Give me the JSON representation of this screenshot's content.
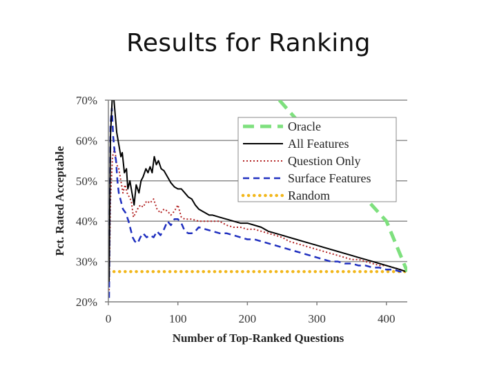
{
  "slide": {
    "title": "Results for Ranking"
  },
  "chart_data": {
    "type": "line",
    "xlabel": "Number of Top-Ranked Questions",
    "ylabel": "Pct. Rated Acceptable",
    "xlim": [
      0,
      430
    ],
    "ylim": [
      20,
      70
    ],
    "x_ticks": [
      {
        "value": 0,
        "label": "0"
      },
      {
        "value": 100,
        "label": "100"
      },
      {
        "value": 200,
        "label": "200"
      },
      {
        "value": 300,
        "label": "300"
      },
      {
        "value": 400,
        "label": "400"
      }
    ],
    "y_ticks": [
      {
        "value": 20,
        "label": "20%"
      },
      {
        "value": 30,
        "label": "30%"
      },
      {
        "value": 40,
        "label": "40%"
      },
      {
        "value": 50,
        "label": "50%"
      },
      {
        "value": 60,
        "label": "60%"
      },
      {
        "value": 70,
        "label": "70%"
      }
    ],
    "grid": true,
    "legend_position": "top-right",
    "series": [
      {
        "name": "Oracle",
        "color": "#7ee07e",
        "style": "dashed-thick",
        "points": [
          [
            246,
            70
          ],
          [
            300,
            59.5
          ],
          [
            350,
            49.5
          ],
          [
            400,
            40
          ],
          [
            430,
            27.5
          ]
        ]
      },
      {
        "name": "All Features",
        "color": "#000000",
        "style": "solid",
        "points": [
          [
            1,
            25
          ],
          [
            3,
            61
          ],
          [
            6,
            72
          ],
          [
            8,
            70
          ],
          [
            10,
            66
          ],
          [
            12,
            62
          ],
          [
            15,
            59
          ],
          [
            18,
            56
          ],
          [
            20,
            57
          ],
          [
            23,
            52
          ],
          [
            26,
            53
          ],
          [
            28,
            48
          ],
          [
            31,
            50
          ],
          [
            34,
            47
          ],
          [
            37,
            44
          ],
          [
            40,
            49
          ],
          [
            44,
            47
          ],
          [
            47,
            50
          ],
          [
            50,
            51
          ],
          [
            54,
            53
          ],
          [
            57,
            52
          ],
          [
            60,
            53.5
          ],
          [
            63,
            52
          ],
          [
            66,
            56
          ],
          [
            69,
            54
          ],
          [
            72,
            55
          ],
          [
            76,
            53
          ],
          [
            80,
            52.5
          ],
          [
            85,
            51
          ],
          [
            90,
            49.5
          ],
          [
            95,
            48.5
          ],
          [
            100,
            48
          ],
          [
            105,
            48
          ],
          [
            110,
            47
          ],
          [
            115,
            46
          ],
          [
            120,
            45.5
          ],
          [
            125,
            44
          ],
          [
            130,
            43
          ],
          [
            135,
            42.5
          ],
          [
            140,
            42
          ],
          [
            145,
            41.5
          ],
          [
            150,
            41.5
          ],
          [
            160,
            41
          ],
          [
            170,
            40.5
          ],
          [
            180,
            40
          ],
          [
            190,
            39.5
          ],
          [
            200,
            39.5
          ],
          [
            210,
            39
          ],
          [
            220,
            38.5
          ],
          [
            230,
            37.5
          ],
          [
            240,
            37
          ],
          [
            250,
            36.5
          ],
          [
            260,
            36
          ],
          [
            270,
            35.5
          ],
          [
            280,
            35
          ],
          [
            290,
            34.5
          ],
          [
            300,
            34
          ],
          [
            310,
            33.5
          ],
          [
            320,
            33
          ],
          [
            330,
            32.5
          ],
          [
            340,
            32
          ],
          [
            350,
            31.5
          ],
          [
            360,
            31
          ],
          [
            370,
            30.5
          ],
          [
            380,
            30
          ],
          [
            390,
            29.5
          ],
          [
            400,
            29
          ],
          [
            410,
            28.5
          ],
          [
            420,
            28
          ],
          [
            428,
            27.5
          ]
        ]
      },
      {
        "name": "Question Only",
        "color": "#b22222",
        "style": "dotted",
        "points": [
          [
            1,
            22
          ],
          [
            3,
            45
          ],
          [
            6,
            56
          ],
          [
            9,
            58
          ],
          [
            12,
            54
          ],
          [
            15,
            53
          ],
          [
            18,
            50
          ],
          [
            21,
            47
          ],
          [
            24,
            49
          ],
          [
            27,
            47
          ],
          [
            30,
            46
          ],
          [
            33,
            45
          ],
          [
            36,
            41
          ],
          [
            39,
            42
          ],
          [
            42,
            43
          ],
          [
            46,
            44
          ],
          [
            50,
            43.5
          ],
          [
            55,
            45
          ],
          [
            60,
            44.5
          ],
          [
            65,
            45.5
          ],
          [
            70,
            43
          ],
          [
            75,
            42
          ],
          [
            80,
            43
          ],
          [
            85,
            42.5
          ],
          [
            90,
            41.5
          ],
          [
            95,
            42.5
          ],
          [
            100,
            44
          ],
          [
            105,
            41
          ],
          [
            110,
            40.5
          ],
          [
            120,
            40.5
          ],
          [
            130,
            40
          ],
          [
            140,
            40
          ],
          [
            150,
            40
          ],
          [
            160,
            40
          ],
          [
            170,
            39
          ],
          [
            180,
            38.5
          ],
          [
            190,
            38.5
          ],
          [
            200,
            38
          ],
          [
            210,
            38
          ],
          [
            220,
            37.5
          ],
          [
            230,
            37
          ],
          [
            240,
            36.5
          ],
          [
            250,
            36
          ],
          [
            260,
            35
          ],
          [
            270,
            34.5
          ],
          [
            280,
            34
          ],
          [
            290,
            33.5
          ],
          [
            300,
            33
          ],
          [
            310,
            32.5
          ],
          [
            320,
            32
          ],
          [
            330,
            31.5
          ],
          [
            340,
            31
          ],
          [
            350,
            30.5
          ],
          [
            360,
            30.5
          ],
          [
            370,
            30
          ],
          [
            380,
            29.5
          ],
          [
            390,
            29
          ],
          [
            400,
            29
          ],
          [
            410,
            28.5
          ],
          [
            420,
            28
          ],
          [
            428,
            27.5
          ]
        ]
      },
      {
        "name": "Surface Features",
        "color": "#1f2fbf",
        "style": "dashed",
        "points": [
          [
            1,
            21
          ],
          [
            3,
            64
          ],
          [
            5,
            68
          ],
          [
            7,
            61
          ],
          [
            9,
            57
          ],
          [
            11,
            55
          ],
          [
            13,
            50
          ],
          [
            15,
            47
          ],
          [
            18,
            45
          ],
          [
            21,
            43
          ],
          [
            25,
            42
          ],
          [
            29,
            40
          ],
          [
            32,
            38
          ],
          [
            35,
            36
          ],
          [
            38,
            35
          ],
          [
            42,
            34.5
          ],
          [
            46,
            36
          ],
          [
            50,
            37
          ],
          [
            55,
            36
          ],
          [
            60,
            36.5
          ],
          [
            65,
            36
          ],
          [
            70,
            37.5
          ],
          [
            75,
            36.5
          ],
          [
            80,
            38
          ],
          [
            85,
            40
          ],
          [
            90,
            39
          ],
          [
            95,
            40.5
          ],
          [
            100,
            40.5
          ],
          [
            105,
            39.5
          ],
          [
            110,
            37.5
          ],
          [
            115,
            37
          ],
          [
            120,
            37
          ],
          [
            125,
            37.5
          ],
          [
            130,
            38.5
          ],
          [
            140,
            38
          ],
          [
            150,
            37.5
          ],
          [
            160,
            37
          ],
          [
            170,
            37
          ],
          [
            180,
            36.5
          ],
          [
            190,
            36
          ],
          [
            200,
            35.5
          ],
          [
            210,
            35.5
          ],
          [
            220,
            35
          ],
          [
            230,
            34.5
          ],
          [
            240,
            34
          ],
          [
            250,
            33.5
          ],
          [
            260,
            33
          ],
          [
            270,
            32.5
          ],
          [
            280,
            32
          ],
          [
            290,
            31.5
          ],
          [
            300,
            31
          ],
          [
            310,
            30.5
          ],
          [
            320,
            30
          ],
          [
            330,
            30
          ],
          [
            340,
            29.5
          ],
          [
            350,
            29.5
          ],
          [
            360,
            29
          ],
          [
            370,
            29
          ],
          [
            380,
            28.5
          ],
          [
            390,
            28.5
          ],
          [
            400,
            28
          ],
          [
            410,
            28
          ],
          [
            420,
            27.5
          ],
          [
            428,
            27.5
          ]
        ]
      },
      {
        "name": "Random",
        "color": "#f2b71b",
        "style": "dotted-thick",
        "points": [
          [
            0,
            27.5
          ],
          [
            430,
            27.5
          ]
        ]
      }
    ]
  }
}
